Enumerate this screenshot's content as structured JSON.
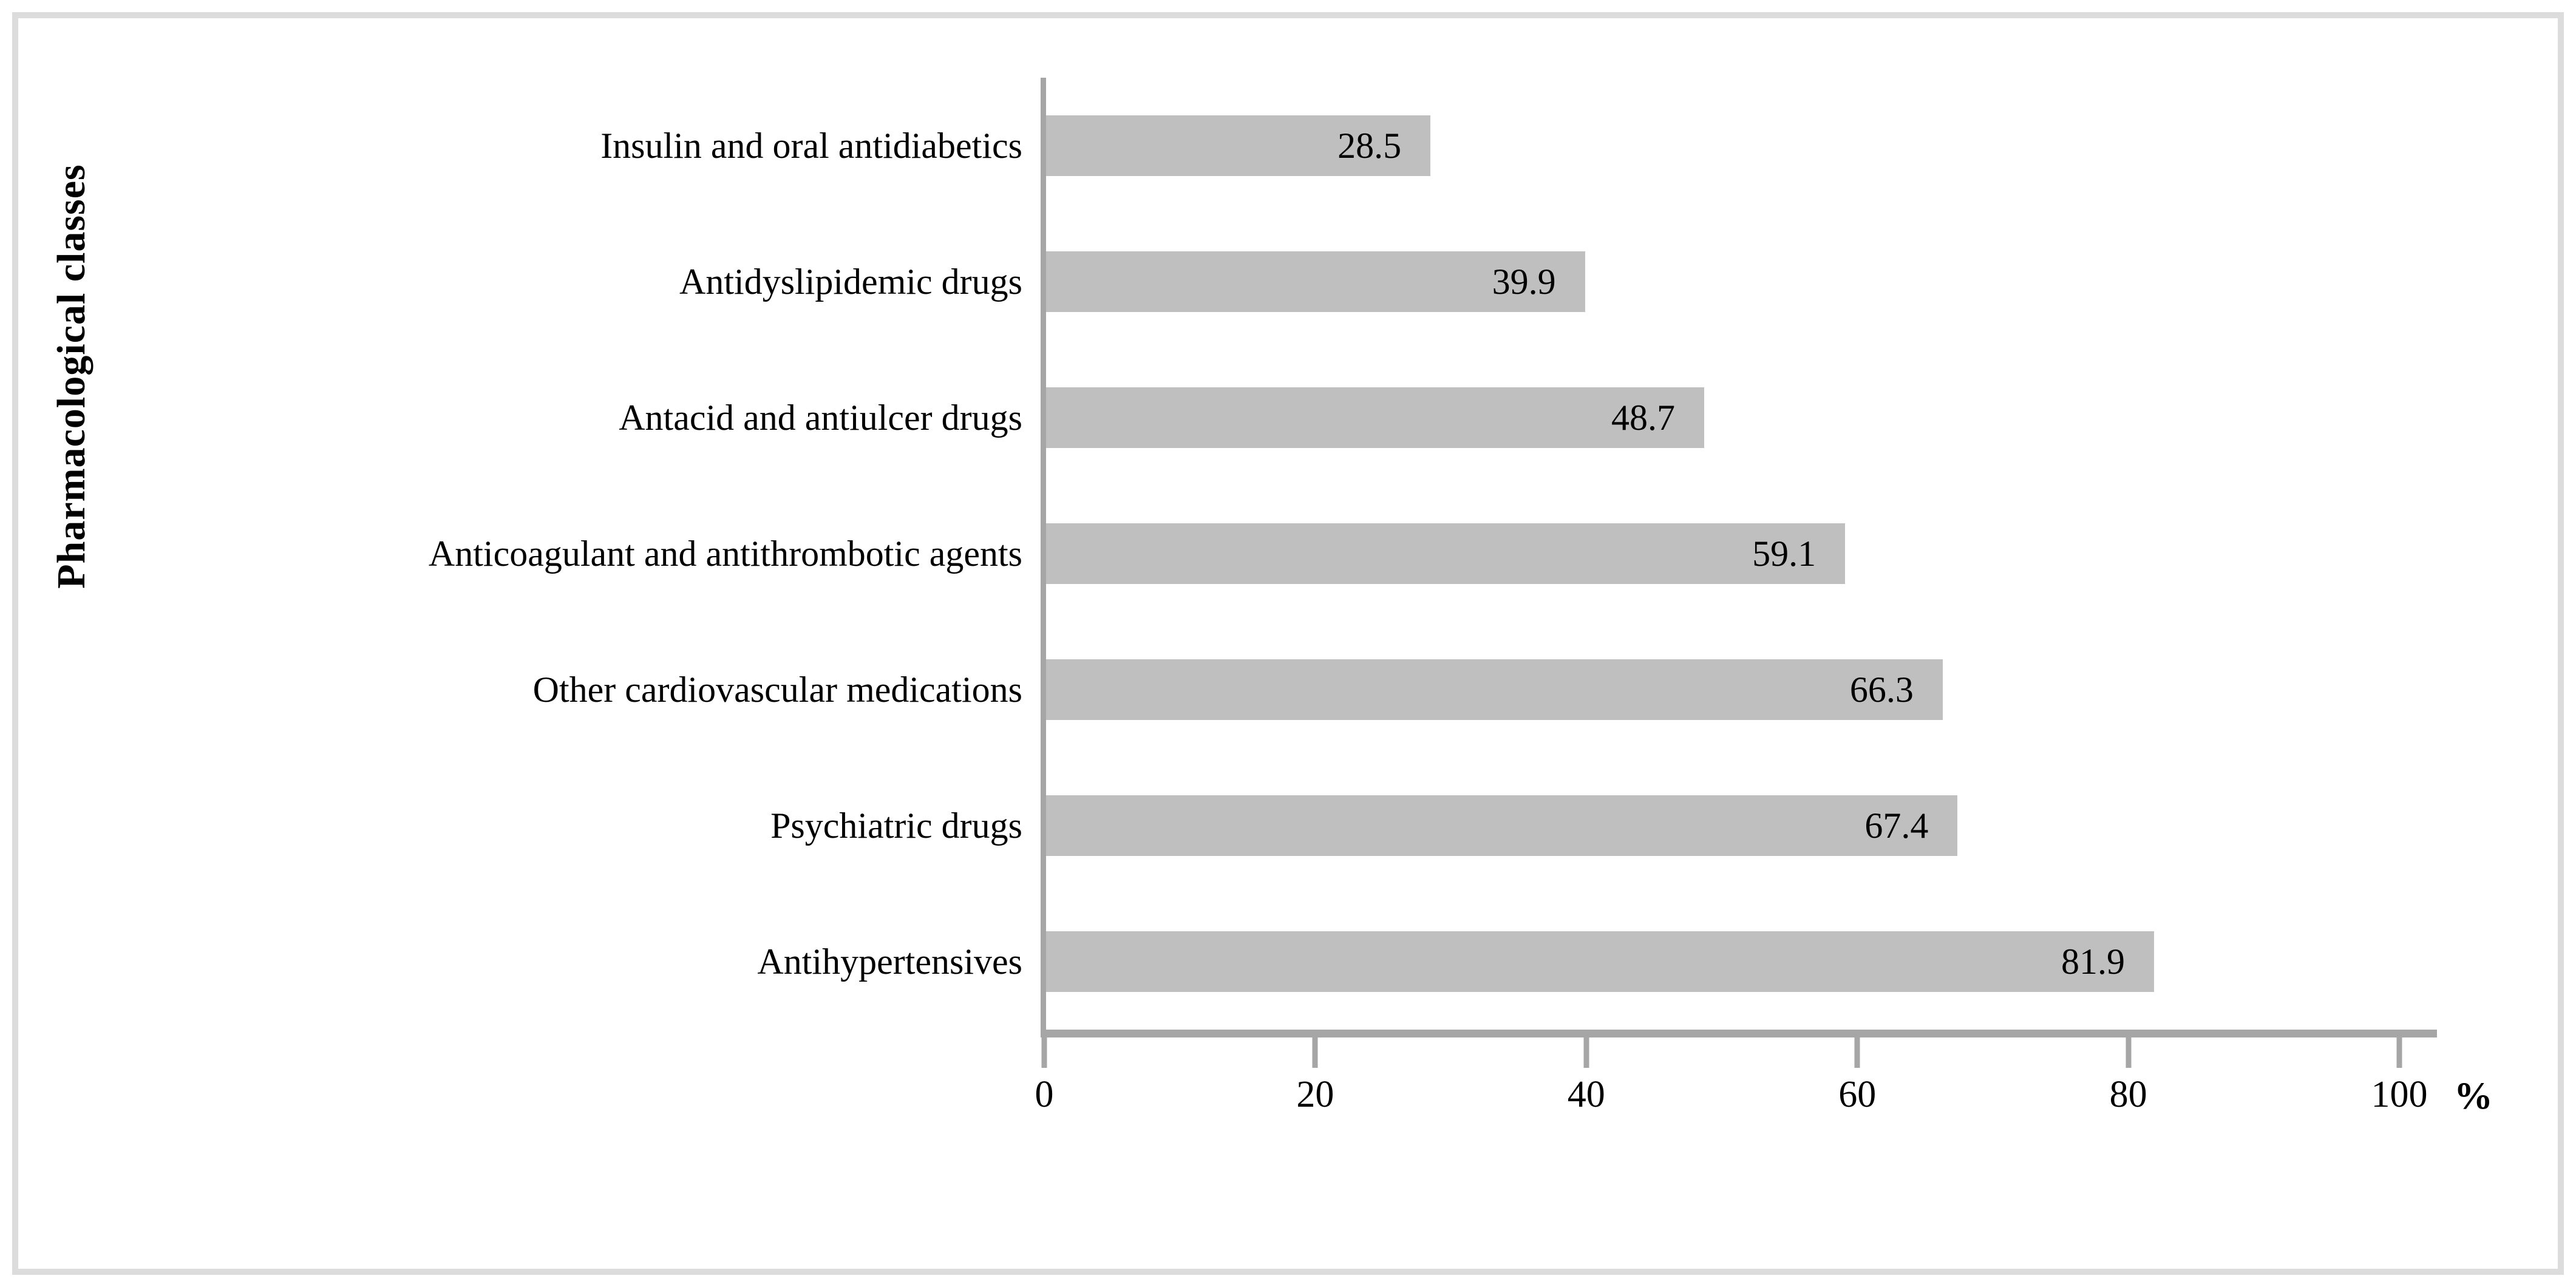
{
  "figure": {
    "background_color": "#ffffff",
    "border_color": "#dcdcdc"
  },
  "chart_data": {
    "type": "bar",
    "orientation": "horizontal",
    "title": "",
    "ylabel": "Pharmacological classes",
    "xlabel": "%",
    "categories": [
      "Insulin and oral antidiabetics",
      "Antidyslipidemic drugs",
      "Antacid and antiulcer drugs",
      "Anticoagulant and antithrombotic agents",
      "Other cardiovascular medications",
      "Psychiatric drugs",
      "Antihypertensives"
    ],
    "values": [
      28.5,
      39.9,
      48.7,
      59.1,
      66.3,
      67.4,
      81.9
    ],
    "value_labels": [
      "28.5",
      "39.9",
      "48.7",
      "59.1",
      "66.3",
      "67.4",
      "81.9"
    ],
    "xlim": [
      0,
      100
    ],
    "x_ticks": [
      0,
      20,
      40,
      60,
      80,
      100
    ],
    "bar_color": "#bfbfbf",
    "axis_color": "#a6a6a6",
    "text_color": "#000000",
    "grid": false,
    "legend_position": "none"
  }
}
